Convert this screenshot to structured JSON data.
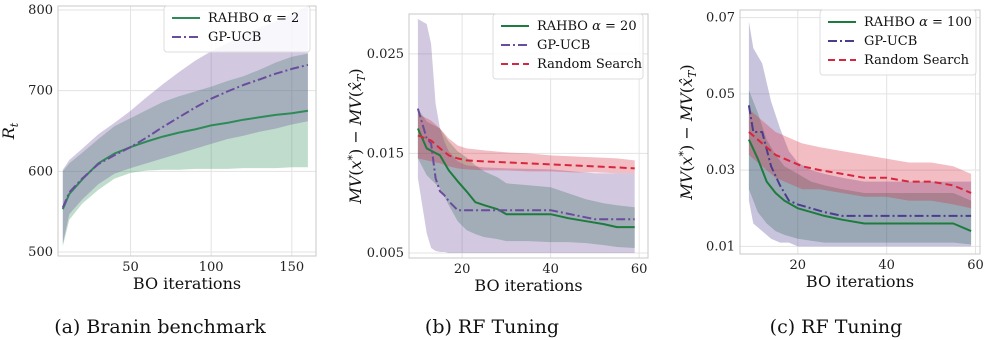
{
  "chart_data": [
    {
      "type": "line",
      "caption": "(a) Branin benchmark",
      "xlabel": "BO iterations",
      "ylabel": "R_t",
      "xlim": [
        5,
        165
      ],
      "ylim": [
        495,
        805
      ],
      "xticks": [
        50,
        100,
        150
      ],
      "yticks": [
        500,
        600,
        700,
        800
      ],
      "grid": true,
      "legend_position": "top-left",
      "series": [
        {
          "name": "RAHBO α = 2",
          "color": "#2e8b57",
          "style": "solid",
          "x": [
            8,
            12,
            20,
            30,
            40,
            50,
            60,
            70,
            80,
            90,
            100,
            110,
            120,
            130,
            140,
            150,
            160
          ],
          "values": [
            553,
            572,
            590,
            610,
            622,
            630,
            637,
            643,
            648,
            652,
            657,
            660,
            664,
            667,
            670,
            672,
            675
          ],
          "lower": [
            507,
            540,
            560,
            577,
            591,
            598,
            601,
            602,
            602,
            603,
            603,
            603,
            604,
            604,
            604,
            605,
            605
          ],
          "upper": [
            600,
            610,
            623,
            640,
            656,
            666,
            676,
            686,
            693,
            699,
            705,
            712,
            718,
            726,
            735,
            742,
            746
          ]
        },
        {
          "name": "GP-UCB",
          "color": "#6a4c9c",
          "style": "dashdot",
          "x": [
            8,
            12,
            20,
            30,
            40,
            50,
            60,
            70,
            80,
            90,
            100,
            110,
            120,
            130,
            140,
            150,
            160
          ],
          "values": [
            555,
            574,
            591,
            609,
            620,
            630,
            642,
            655,
            667,
            679,
            690,
            699,
            707,
            714,
            721,
            727,
            732
          ],
          "lower": [
            510,
            547,
            565,
            584,
            597,
            604,
            610,
            616,
            622,
            628,
            634,
            640,
            644,
            649,
            653,
            658,
            662
          ],
          "upper": [
            602,
            614,
            628,
            646,
            660,
            675,
            692,
            708,
            723,
            737,
            749,
            759,
            769,
            778,
            786,
            795,
            805
          ]
        }
      ]
    },
    {
      "type": "line",
      "caption": "(b) RF Tuning",
      "xlabel": "BO iterations",
      "ylabel": "MV(x*) − MV(x̂_T)",
      "xlim": [
        8,
        62
      ],
      "ylim": [
        0.0045,
        0.029
      ],
      "xticks": [
        20,
        40,
        60
      ],
      "yticks": [
        0.005,
        0.015,
        0.025
      ],
      "ytick_labels": [
        "0.005",
        "0.015",
        "0.025"
      ],
      "grid": true,
      "legend_position": "top-right",
      "series": [
        {
          "name": "RAHBO α = 20",
          "color": "#1e7b3e",
          "style": "solid",
          "x": [
            10,
            12,
            15,
            17,
            19,
            21,
            23,
            25,
            28,
            30,
            35,
            40,
            44,
            48,
            52,
            55,
            59
          ],
          "values": [
            0.0175,
            0.0155,
            0.0148,
            0.0133,
            0.0122,
            0.0112,
            0.0101,
            0.0098,
            0.0094,
            0.0089,
            0.0089,
            0.0089,
            0.0085,
            0.0082,
            0.0079,
            0.0076,
            0.0076
          ],
          "lower": [
            0.0145,
            0.0128,
            0.0115,
            0.0098,
            0.0082,
            0.0073,
            0.0069,
            0.0066,
            0.0064,
            0.0062,
            0.0062,
            0.0061,
            0.0061,
            0.006,
            0.0058,
            0.0056,
            0.0055
          ],
          "upper": [
            0.0195,
            0.0182,
            0.0175,
            0.0162,
            0.0152,
            0.0146,
            0.0138,
            0.0132,
            0.0126,
            0.012,
            0.0118,
            0.0116,
            0.011,
            0.0104,
            0.01,
            0.0098,
            0.0096
          ]
        },
        {
          "name": "GP-UCB",
          "color": "#6a4c9c",
          "style": "dashdot",
          "x": [
            10,
            12,
            13,
            14,
            15,
            16,
            17,
            19,
            21,
            25,
            30,
            40,
            50,
            59
          ],
          "values": [
            0.0195,
            0.0165,
            0.016,
            0.0125,
            0.0112,
            0.0108,
            0.0102,
            0.0093,
            0.0093,
            0.0093,
            0.0093,
            0.0093,
            0.0084,
            0.0084
          ],
          "lower": [
            0.0125,
            0.007,
            0.0055,
            0.0052,
            0.0051,
            0.0051,
            0.005,
            0.005,
            0.005,
            0.005,
            0.005,
            0.005,
            0.005,
            0.005
          ],
          "upper": [
            0.0285,
            0.028,
            0.026,
            0.02,
            0.0175,
            0.0162,
            0.0152,
            0.0142,
            0.0138,
            0.0136,
            0.0135,
            0.0134,
            0.013,
            0.013
          ]
        },
        {
          "name": "Random Search",
          "color": "#d7263d",
          "style": "dashed",
          "x": [
            10,
            13,
            15,
            17,
            19,
            21,
            25,
            30,
            35,
            40,
            45,
            50,
            55,
            59
          ],
          "values": [
            0.0168,
            0.0163,
            0.0155,
            0.0148,
            0.0145,
            0.0143,
            0.0142,
            0.0141,
            0.014,
            0.0139,
            0.0138,
            0.0137,
            0.0136,
            0.0135
          ],
          "lower": [
            0.0145,
            0.0142,
            0.014,
            0.0137,
            0.0135,
            0.0134,
            0.0133,
            0.0133,
            0.0132,
            0.0132,
            0.0131,
            0.0131,
            0.013,
            0.013
          ],
          "upper": [
            0.019,
            0.0183,
            0.0175,
            0.0165,
            0.0158,
            0.0155,
            0.0153,
            0.0151,
            0.015,
            0.0148,
            0.0147,
            0.0146,
            0.0145,
            0.0143
          ]
        }
      ]
    },
    {
      "type": "line",
      "caption": "(c) RF Tuning",
      "xlabel": "BO iterations",
      "ylabel": "MV(x*) − MV(x̂_T)",
      "xlim": [
        7,
        61
      ],
      "ylim": [
        0.008,
        0.072
      ],
      "xticks": [
        20,
        40,
        60
      ],
      "yticks": [
        0.01,
        0.03,
        0.05,
        0.07
      ],
      "ytick_labels": [
        "0.01",
        "0.03",
        "0.05",
        "0.07"
      ],
      "grid": true,
      "legend_position": "top-right",
      "series": [
        {
          "name": "RAHBO α = 100",
          "color": "#1e7b3e",
          "style": "solid",
          "x": [
            9,
            11,
            13,
            15,
            17,
            20,
            23,
            26,
            30,
            35,
            40,
            45,
            50,
            55,
            59
          ],
          "values": [
            0.038,
            0.033,
            0.027,
            0.024,
            0.022,
            0.02,
            0.019,
            0.018,
            0.017,
            0.016,
            0.016,
            0.016,
            0.016,
            0.016,
            0.014
          ],
          "lower": [
            0.025,
            0.019,
            0.016,
            0.014,
            0.013,
            0.012,
            0.0115,
            0.011,
            0.011,
            0.011,
            0.011,
            0.011,
            0.011,
            0.011,
            0.0105
          ],
          "upper": [
            0.051,
            0.045,
            0.038,
            0.034,
            0.031,
            0.029,
            0.027,
            0.026,
            0.025,
            0.024,
            0.024,
            0.024,
            0.024,
            0.024,
            0.022
          ]
        },
        {
          "name": "GP-UCB",
          "color": "#4b3c8f",
          "style": "dashdot",
          "x": [
            9,
            10,
            12,
            14,
            16,
            18,
            20,
            23,
            26,
            30,
            35,
            40,
            50,
            59
          ],
          "values": [
            0.047,
            0.04,
            0.04,
            0.031,
            0.026,
            0.022,
            0.021,
            0.02,
            0.019,
            0.018,
            0.018,
            0.018,
            0.018,
            0.018
          ],
          "lower": [
            0.022,
            0.016,
            0.014,
            0.012,
            0.011,
            0.011,
            0.01,
            0.01,
            0.01,
            0.01,
            0.01,
            0.01,
            0.01,
            0.01
          ],
          "upper": [
            0.069,
            0.062,
            0.058,
            0.048,
            0.041,
            0.035,
            0.032,
            0.03,
            0.029,
            0.028,
            0.027,
            0.027,
            0.027,
            0.027
          ]
        },
        {
          "name": "Random Search",
          "color": "#d7263d",
          "style": "dashed",
          "x": [
            9,
            11,
            13,
            15,
            17,
            19,
            21,
            25,
            30,
            35,
            40,
            45,
            50,
            55,
            59
          ],
          "values": [
            0.04,
            0.038,
            0.036,
            0.034,
            0.033,
            0.032,
            0.031,
            0.03,
            0.029,
            0.028,
            0.028,
            0.027,
            0.027,
            0.026,
            0.024
          ],
          "lower": [
            0.034,
            0.032,
            0.03,
            0.028,
            0.027,
            0.026,
            0.025,
            0.025,
            0.024,
            0.023,
            0.023,
            0.022,
            0.022,
            0.021,
            0.02
          ],
          "upper": [
            0.046,
            0.044,
            0.042,
            0.04,
            0.039,
            0.038,
            0.037,
            0.036,
            0.035,
            0.034,
            0.033,
            0.032,
            0.032,
            0.031,
            0.029
          ]
        }
      ]
    }
  ]
}
